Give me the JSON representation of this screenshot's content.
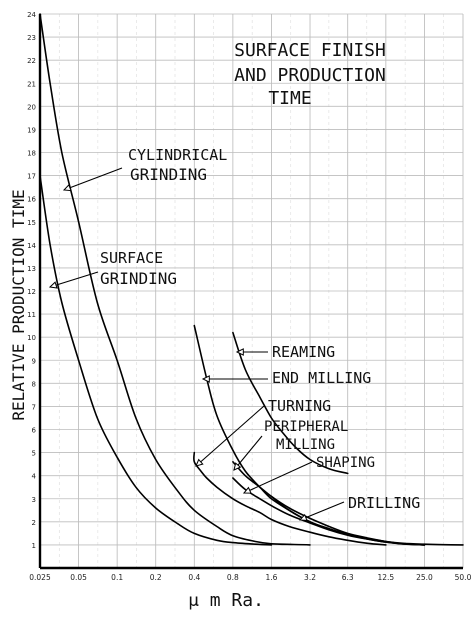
{
  "chart_data": {
    "type": "line",
    "title": [
      "SURFACE FINISH",
      "AND PRODUCTION",
      "TIME"
    ],
    "xlabel": "μ m Ra.",
    "ylabel": "RELATIVE PRODUCTION TIME",
    "x_scale": "log2",
    "x_ticks": [
      "0.025",
      "0.05",
      "0.1",
      "0.2",
      "0.4",
      "0.8",
      "1.6",
      "3.2",
      "6.3",
      "12.5",
      "25.0",
      "50.0"
    ],
    "y_ticks": [
      "1",
      "2",
      "3",
      "4",
      "5",
      "6",
      "7",
      "8",
      "9",
      "10",
      "11",
      "12",
      "13",
      "14",
      "15",
      "16",
      "17",
      "18",
      "19",
      "20",
      "21",
      "22",
      "23",
      "24"
    ],
    "ylim": [
      0,
      24
    ],
    "grid": true,
    "series": [
      {
        "name": "CYLINDRICAL GRINDING",
        "x": [
          0.025,
          0.03,
          0.037,
          0.05,
          0.07,
          0.1,
          0.14,
          0.2,
          0.3,
          0.4,
          0.6,
          0.8,
          1.2,
          1.6,
          2.4,
          3.2
        ],
        "y": [
          24,
          21,
          18,
          15,
          11.5,
          9,
          6.5,
          4.7,
          3.3,
          2.5,
          1.8,
          1.4,
          1.15,
          1.05,
          1.02,
          1.0
        ]
      },
      {
        "name": "SURFACE GRINDING",
        "x": [
          0.025,
          0.03,
          0.037,
          0.05,
          0.07,
          0.1,
          0.14,
          0.2,
          0.3,
          0.4,
          0.6,
          0.8,
          1.2,
          1.6
        ],
        "y": [
          17,
          14,
          11.5,
          9,
          6.5,
          4.8,
          3.5,
          2.6,
          1.9,
          1.5,
          1.2,
          1.1,
          1.03,
          1.0
        ]
      },
      {
        "name": "REAMING",
        "x": [
          0.8,
          1.0,
          1.3,
          1.6,
          2.0,
          2.5,
          3.2,
          4.5,
          6.3
        ],
        "y": [
          10.2,
          8.6,
          7.4,
          6.5,
          5.8,
          5.2,
          4.7,
          4.3,
          4.1
        ]
      },
      {
        "name": "END MILLING",
        "x": [
          0.4,
          0.5,
          0.6,
          0.8,
          1.0,
          1.3,
          1.6,
          2.2,
          3.2,
          4.5,
          6.3,
          9.0,
          12.5,
          17.0,
          25.0
        ],
        "y": [
          10.5,
          8.2,
          6.6,
          5.1,
          4.2,
          3.5,
          3.0,
          2.5,
          2.0,
          1.7,
          1.45,
          1.25,
          1.12,
          1.05,
          1.0
        ]
      },
      {
        "name": "TURNING",
        "x": [
          0.4,
          0.4,
          0.45,
          0.5,
          0.6,
          0.8,
          1.0,
          1.3,
          1.6,
          2.2,
          3.2,
          4.5,
          6.3,
          9.0,
          12.5
        ],
        "y": [
          5.0,
          4.6,
          4.2,
          3.9,
          3.5,
          3.0,
          2.7,
          2.4,
          2.1,
          1.8,
          1.55,
          1.35,
          1.2,
          1.07,
          1.0
        ]
      },
      {
        "name": "PERIPHERAL MILLING",
        "x": [
          0.8,
          1.0,
          1.3,
          1.6,
          2.2,
          3.2,
          4.5,
          6.3,
          9.0,
          12.5,
          17.0,
          25.0
        ],
        "y": [
          4.6,
          4.0,
          3.5,
          3.1,
          2.6,
          2.15,
          1.8,
          1.5,
          1.3,
          1.15,
          1.05,
          1.0
        ]
      },
      {
        "name": "SHAPING",
        "x": [
          0.8,
          1.0,
          1.3,
          1.6,
          2.2,
          3.2,
          4.5,
          6.3,
          9.0,
          12.5,
          17.0,
          25.0
        ],
        "y": [
          3.9,
          3.4,
          3.0,
          2.7,
          2.3,
          1.95,
          1.65,
          1.42,
          1.25,
          1.12,
          1.04,
          1.0
        ]
      },
      {
        "name": "DRILLING",
        "x": [
          1.6,
          2.2,
          3.2,
          4.5,
          6.3,
          9.0,
          12.5,
          17.0,
          25.0,
          35.0,
          50.0
        ],
        "y": [
          3.1,
          2.5,
          2.0,
          1.7,
          1.45,
          1.28,
          1.15,
          1.07,
          1.03,
          1.01,
          1.0
        ]
      }
    ]
  }
}
